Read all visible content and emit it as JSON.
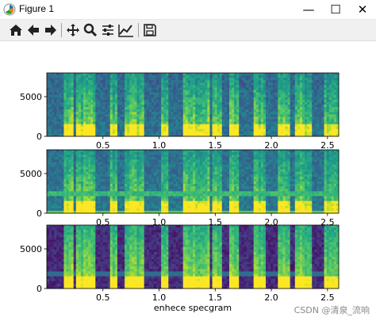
{
  "window": {
    "title": "Figure 1",
    "minimize_glyph": "—",
    "maximize_glyph": "☐",
    "close_glyph": "✕"
  },
  "toolbar": {
    "buttons": [
      {
        "name": "home-icon"
      },
      {
        "name": "back-arrow-icon"
      },
      {
        "name": "forward-arrow-icon"
      },
      {
        "name": "pan-icon"
      },
      {
        "name": "zoom-icon"
      },
      {
        "name": "configure-subplots-icon"
      },
      {
        "name": "edit-axis-icon"
      },
      {
        "name": "save-icon"
      }
    ]
  },
  "chart_data": [
    {
      "type": "heatmap",
      "title": "",
      "xlabel": "",
      "ylabel": "",
      "xlim": [
        0,
        2.6
      ],
      "ylim": [
        0,
        8000
      ],
      "xticks": [
        "0.5",
        "1.0",
        "1.5",
        "2.0",
        "2.5"
      ],
      "yticks": [
        "0",
        "5000"
      ],
      "colormap": "viridis",
      "noise_band": false
    },
    {
      "type": "heatmap",
      "title": "",
      "xlabel": "",
      "ylabel": "",
      "xlim": [
        0,
        2.6
      ],
      "ylim": [
        0,
        8000
      ],
      "xticks": [
        "0.5",
        "1.0",
        "1.5",
        "2.0",
        "2.5"
      ],
      "yticks": [
        "0",
        "5000"
      ],
      "colormap": "viridis",
      "noise_band": true
    },
    {
      "type": "heatmap",
      "title": "",
      "xlabel": "enhece specgram",
      "ylabel": "",
      "xlim": [
        0,
        2.6
      ],
      "ylim": [
        0,
        8000
      ],
      "xticks": [
        "0.5",
        "1.0",
        "1.5",
        "2.0",
        "2.5"
      ],
      "yticks": [
        "0",
        "5000"
      ],
      "colormap": "viridis",
      "noise_band": false
    }
  ],
  "watermark": "CSDN @清泉_流响"
}
